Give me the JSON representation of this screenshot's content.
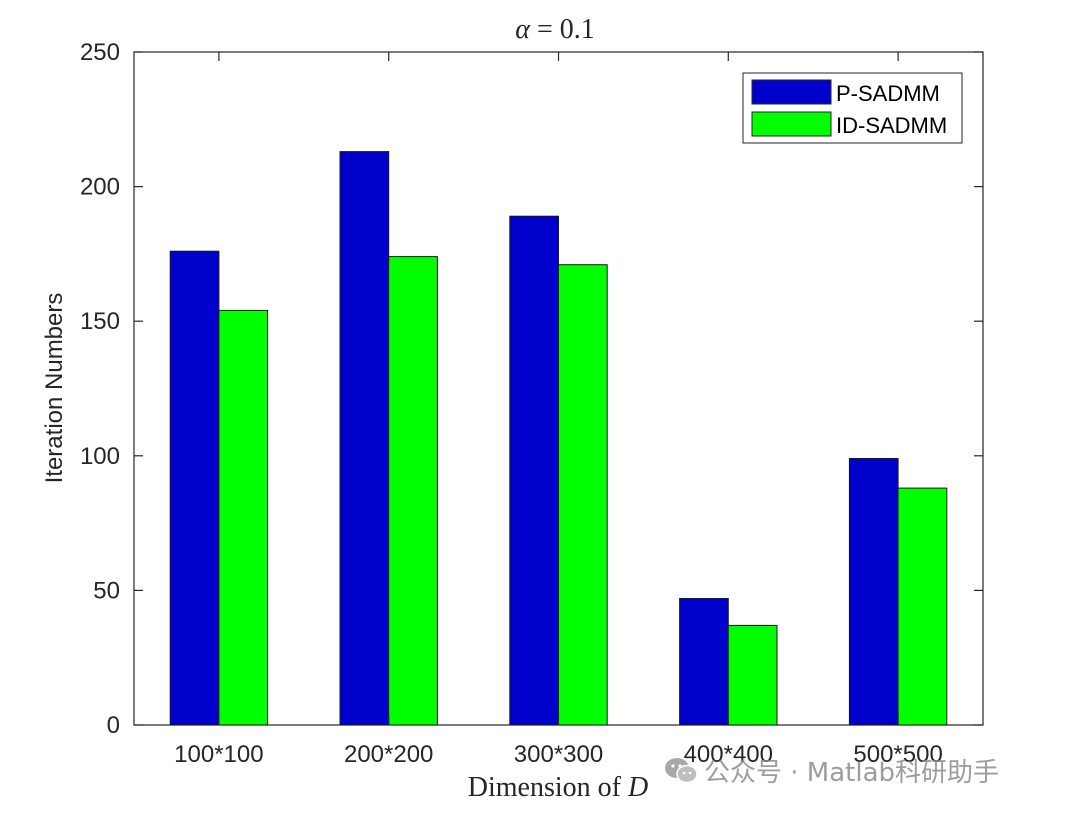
{
  "chart_data": {
    "type": "bar",
    "title_prefix": "α",
    "title_suffix": " = 0.1",
    "xlabel_prefix": "Dimension of ",
    "xlabel_var": "D",
    "ylabel": "Iteration Numbers",
    "categories": [
      "100*100",
      "200*200",
      "300*300",
      "400*400",
      "500*500"
    ],
    "series": [
      {
        "name": "P-SADMM",
        "color": "#0000cd",
        "values": [
          176,
          213,
          189,
          47,
          99
        ]
      },
      {
        "name": "ID-SADMM",
        "color": "#00ff00",
        "values": [
          154,
          174,
          171,
          37,
          88
        ]
      }
    ],
    "ylim": [
      0,
      250
    ],
    "yticks": [
      0,
      50,
      100,
      150,
      200,
      250
    ],
    "grid": false,
    "legend_position": "top-right"
  },
  "watermark": {
    "icon": "wechat-icon",
    "text": "公众号 · Matlab科研助手"
  }
}
